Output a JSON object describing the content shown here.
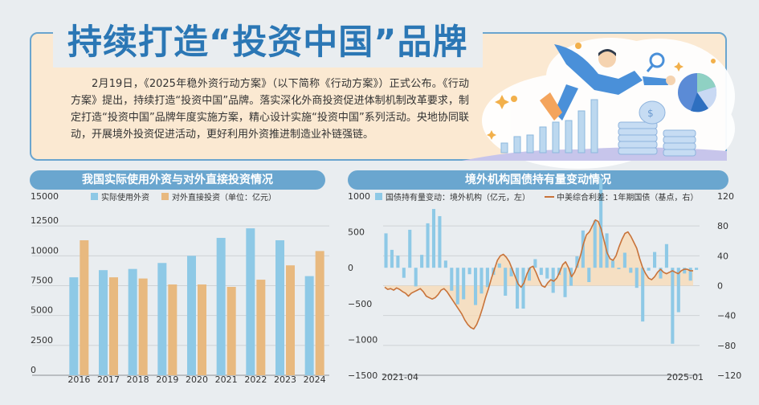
{
  "header": {
    "title": "持续打造“投资中国”品牌",
    "paragraph": "2月19日，《2025年稳外资行动方案》（以下简称《行动方案》）正式公布。《行动方案》提出，持续打造“投资中国”品牌。落实深化外商投资促进体制机制改革要求，制定打造“投资中国”品牌年度实施方案，精心设计实施“投资中国”系列活动。央地协同联动，开展境外投资促进活动，更好利用外资推进制造业补链强链。"
  },
  "colors": {
    "blue": "#8ec9e6",
    "orange": "#e8b97f",
    "line": "#c8733a",
    "header": "#6aa6cf",
    "title": "#2b77b5"
  },
  "chart_data": [
    {
      "type": "bar",
      "title": "我国实际使用外资与对外直接投资情况",
      "categories": [
        "2016",
        "2017",
        "2018",
        "2019",
        "2020",
        "2021",
        "2022",
        "2023",
        "2024"
      ],
      "series": [
        {
          "name": "实际使用外资",
          "values": [
            8200,
            8800,
            8900,
            9400,
            10000,
            11500,
            12300,
            11300,
            8300
          ]
        },
        {
          "name": "对外直接投资（单位：亿元）",
          "values": [
            11300,
            8200,
            8100,
            7600,
            7600,
            7400,
            8000,
            9200,
            10400
          ]
        }
      ],
      "yticks": [
        "15000",
        "12500",
        "10000",
        "7500",
        "5000",
        "2500",
        "0"
      ],
      "ylim": [
        0,
        15000
      ]
    },
    {
      "type": "bar+line",
      "title": "境外机构国债持有量变动情况",
      "series": [
        {
          "name": "国债持有量变动：境外机构（亿元，左）",
          "type": "bar",
          "axis": "left",
          "values": [
            480,
            250,
            170,
            -140,
            530,
            -260,
            180,
            620,
            820,
            720,
            100,
            -320,
            -510,
            -440,
            -90,
            -520,
            -360,
            -270,
            -100,
            60,
            -390,
            -120,
            -570,
            -570,
            -180,
            120,
            -100,
            -150,
            -350,
            -100,
            -410,
            -250,
            160,
            520,
            -200,
            660,
            1250,
            480,
            100,
            -20,
            210,
            -70,
            -280,
            -750,
            -40,
            220,
            -150,
            330,
            -1060,
            -620,
            -80,
            -180,
            -30
          ],
          "x_start": "2021-04",
          "x_end": "2025-01"
        },
        {
          "name": "中美综合利差：1年期国债（基点，右）",
          "type": "line",
          "axis": "right",
          "values": [
            -2,
            -5,
            -4,
            -6,
            -3,
            -5,
            -8,
            -10,
            -14,
            -10,
            -8,
            -6,
            -4,
            -8,
            -14,
            -16,
            -18,
            -16,
            -12,
            -6,
            -4,
            -8,
            -14,
            -20,
            -26,
            -32,
            -38,
            -46,
            -52,
            -56,
            -58,
            -52,
            -42,
            -30,
            -16,
            -4,
            10,
            22,
            34,
            40,
            42,
            38,
            32,
            22,
            12,
            2,
            -2,
            4,
            16,
            24,
            26,
            18,
            8,
            0,
            -2,
            4,
            8,
            6,
            10,
            18,
            28,
            32,
            24,
            12,
            18,
            28,
            40,
            56,
            68,
            72,
            80,
            88,
            86,
            76,
            60,
            44,
            36,
            34,
            40,
            52,
            62,
            70,
            72,
            66,
            58,
            50,
            36,
            24,
            16,
            10,
            8,
            12,
            18,
            22,
            18,
            16,
            18,
            20,
            18,
            16,
            20,
            22,
            22,
            20,
            20
          ],
          "x_start": "2021-04",
          "x_end": "2025-01"
        }
      ],
      "left_ticks": [
        "1000",
        "500",
        "0",
        "−500",
        "−1000",
        "−1500"
      ],
      "right_ticks": [
        "120",
        "80",
        "40",
        "0",
        "−40",
        "−80",
        "−120"
      ],
      "ylim_left": [
        -1500,
        1000
      ],
      "ylim_right": [
        -120,
        120
      ],
      "x_tick_labels": [
        "2021-04",
        "2025-01"
      ]
    }
  ]
}
